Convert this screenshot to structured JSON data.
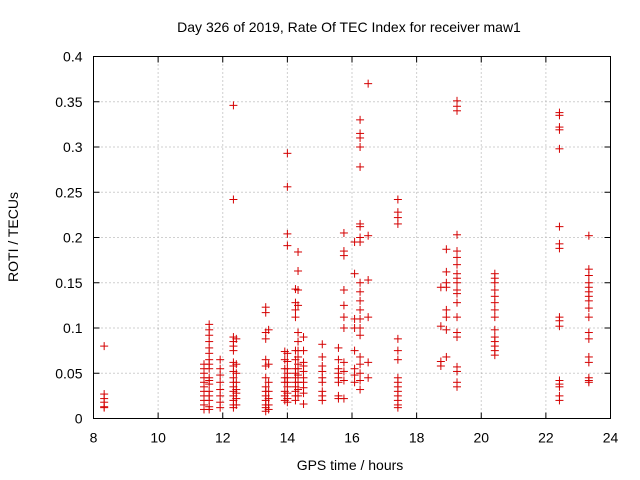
{
  "chart_data": {
    "type": "scatter",
    "title": "Day 326 of 2019, Rate Of TEC Index for receiver maw1",
    "xlabel": "GPS time / hours",
    "ylabel": "ROTI / TECUs",
    "xlim": [
      8,
      24
    ],
    "ylim": [
      0,
      0.4
    ],
    "x_ticks": [
      8,
      10,
      12,
      14,
      16,
      18,
      20,
      22,
      24
    ],
    "x_tick_labels": [
      "8",
      "10",
      "12",
      "14",
      "16",
      "18",
      "20",
      "22",
      "24"
    ],
    "y_ticks": [
      0,
      0.05,
      0.1,
      0.15,
      0.2,
      0.25,
      0.3,
      0.35,
      0.4
    ],
    "y_tick_labels": [
      "0",
      "0.05",
      "0.1",
      "0.15",
      "0.2",
      "0.25",
      "0.3",
      "0.35",
      "0.4"
    ],
    "grid": true,
    "marker": "plus",
    "color": "#d40000",
    "series": [
      {
        "name": "ROTI",
        "points": [
          [
            8.33,
            0.08
          ],
          [
            8.33,
            0.027
          ],
          [
            8.33,
            0.022
          ],
          [
            8.33,
            0.018
          ],
          [
            8.33,
            0.013
          ],
          [
            8.33,
            0.012
          ],
          [
            11.42,
            0.06
          ],
          [
            11.42,
            0.055
          ],
          [
            11.42,
            0.05
          ],
          [
            11.42,
            0.045
          ],
          [
            11.42,
            0.04
          ],
          [
            11.42,
            0.035
          ],
          [
            11.42,
            0.03
          ],
          [
            11.42,
            0.025
          ],
          [
            11.42,
            0.02
          ],
          [
            11.42,
            0.015
          ],
          [
            11.42,
            0.01
          ],
          [
            11.58,
            0.104
          ],
          [
            11.58,
            0.098
          ],
          [
            11.58,
            0.092
          ],
          [
            11.58,
            0.085
          ],
          [
            11.58,
            0.078
          ],
          [
            11.58,
            0.072
          ],
          [
            11.58,
            0.065
          ],
          [
            11.58,
            0.06
          ],
          [
            11.58,
            0.055
          ],
          [
            11.58,
            0.045
          ],
          [
            11.58,
            0.042
          ],
          [
            11.58,
            0.038
          ],
          [
            11.58,
            0.03
          ],
          [
            11.58,
            0.025
          ],
          [
            11.58,
            0.02
          ],
          [
            11.58,
            0.013
          ],
          [
            11.58,
            0.01
          ],
          [
            11.92,
            0.065
          ],
          [
            11.92,
            0.055
          ],
          [
            11.92,
            0.048
          ],
          [
            11.92,
            0.04
          ],
          [
            11.92,
            0.032
          ],
          [
            11.92,
            0.025
          ],
          [
            11.92,
            0.018
          ],
          [
            11.92,
            0.012
          ],
          [
            12.33,
            0.346
          ],
          [
            12.33,
            0.242
          ],
          [
            12.33,
            0.09
          ],
          [
            12.33,
            0.085
          ],
          [
            12.33,
            0.08
          ],
          [
            12.33,
            0.075
          ],
          [
            12.33,
            0.062
          ],
          [
            12.33,
            0.058
          ],
          [
            12.33,
            0.052
          ],
          [
            12.33,
            0.045
          ],
          [
            12.33,
            0.04
          ],
          [
            12.33,
            0.035
          ],
          [
            12.33,
            0.03
          ],
          [
            12.33,
            0.025
          ],
          [
            12.33,
            0.02
          ],
          [
            12.33,
            0.015
          ],
          [
            12.33,
            0.012
          ],
          [
            12.42,
            0.088
          ],
          [
            12.42,
            0.06
          ],
          [
            12.42,
            0.05
          ],
          [
            12.42,
            0.04
          ],
          [
            12.42,
            0.032
          ],
          [
            12.42,
            0.028
          ],
          [
            12.42,
            0.022
          ],
          [
            12.42,
            0.015
          ],
          [
            13.33,
            0.123
          ],
          [
            13.33,
            0.117
          ],
          [
            13.33,
            0.095
          ],
          [
            13.33,
            0.088
          ],
          [
            13.33,
            0.065
          ],
          [
            13.33,
            0.058
          ],
          [
            13.33,
            0.045
          ],
          [
            13.33,
            0.035
          ],
          [
            13.33,
            0.03
          ],
          [
            13.33,
            0.025
          ],
          [
            13.33,
            0.02
          ],
          [
            13.33,
            0.015
          ],
          [
            13.33,
            0.012
          ],
          [
            13.33,
            0.008
          ],
          [
            13.42,
            0.098
          ],
          [
            13.42,
            0.06
          ],
          [
            13.42,
            0.04
          ],
          [
            13.42,
            0.03
          ],
          [
            13.42,
            0.022
          ],
          [
            13.42,
            0.015
          ],
          [
            13.42,
            0.01
          ],
          [
            13.92,
            0.074
          ],
          [
            13.92,
            0.065
          ],
          [
            13.92,
            0.055
          ],
          [
            13.92,
            0.045
          ],
          [
            13.92,
            0.04
          ],
          [
            13.92,
            0.03
          ],
          [
            13.92,
            0.025
          ],
          [
            13.92,
            0.02
          ],
          [
            14.0,
            0.293
          ],
          [
            14.0,
            0.256
          ],
          [
            14.0,
            0.204
          ],
          [
            14.0,
            0.191
          ],
          [
            14.0,
            0.072
          ],
          [
            14.0,
            0.063
          ],
          [
            14.0,
            0.055
          ],
          [
            14.0,
            0.05
          ],
          [
            14.0,
            0.045
          ],
          [
            14.0,
            0.04
          ],
          [
            14.0,
            0.035
          ],
          [
            14.0,
            0.028
          ],
          [
            14.0,
            0.022
          ],
          [
            14.0,
            0.018
          ],
          [
            14.25,
            0.143
          ],
          [
            14.25,
            0.128
          ],
          [
            14.25,
            0.12
          ],
          [
            14.25,
            0.112
          ],
          [
            14.25,
            0.075
          ],
          [
            14.25,
            0.065
          ],
          [
            14.25,
            0.055
          ],
          [
            14.25,
            0.05
          ],
          [
            14.25,
            0.045
          ],
          [
            14.25,
            0.04
          ],
          [
            14.25,
            0.035
          ],
          [
            14.25,
            0.03
          ],
          [
            14.25,
            0.025
          ],
          [
            14.25,
            0.02
          ],
          [
            14.33,
            0.184
          ],
          [
            14.33,
            0.163
          ],
          [
            14.33,
            0.142
          ],
          [
            14.33,
            0.125
          ],
          [
            14.33,
            0.095
          ],
          [
            14.33,
            0.085
          ],
          [
            14.33,
            0.075
          ],
          [
            14.33,
            0.068
          ],
          [
            14.33,
            0.06
          ],
          [
            14.33,
            0.055
          ],
          [
            14.33,
            0.048
          ],
          [
            14.33,
            0.04
          ],
          [
            14.33,
            0.032
          ],
          [
            14.33,
            0.025
          ],
          [
            14.5,
            0.09
          ],
          [
            14.5,
            0.075
          ],
          [
            14.5,
            0.062
          ],
          [
            14.5,
            0.058
          ],
          [
            14.5,
            0.052
          ],
          [
            14.5,
            0.045
          ],
          [
            14.5,
            0.04
          ],
          [
            14.5,
            0.034
          ],
          [
            14.5,
            0.028
          ],
          [
            14.5,
            0.016
          ],
          [
            15.08,
            0.082
          ],
          [
            15.08,
            0.068
          ],
          [
            15.08,
            0.058
          ],
          [
            15.08,
            0.052
          ],
          [
            15.08,
            0.045
          ],
          [
            15.08,
            0.04
          ],
          [
            15.08,
            0.03
          ],
          [
            15.08,
            0.025
          ],
          [
            15.08,
            0.02
          ],
          [
            15.58,
            0.078
          ],
          [
            15.58,
            0.065
          ],
          [
            15.58,
            0.055
          ],
          [
            15.58,
            0.05
          ],
          [
            15.58,
            0.045
          ],
          [
            15.58,
            0.04
          ],
          [
            15.58,
            0.025
          ],
          [
            15.58,
            0.022
          ],
          [
            15.75,
            0.205
          ],
          [
            15.75,
            0.185
          ],
          [
            15.75,
            0.18
          ],
          [
            15.75,
            0.142
          ],
          [
            15.75,
            0.125
          ],
          [
            15.75,
            0.112
          ],
          [
            15.75,
            0.1
          ],
          [
            15.75,
            0.062
          ],
          [
            15.75,
            0.052
          ],
          [
            15.75,
            0.042
          ],
          [
            15.75,
            0.022
          ],
          [
            16.08,
            0.195
          ],
          [
            16.08,
            0.16
          ],
          [
            16.08,
            0.11
          ],
          [
            16.08,
            0.1
          ],
          [
            16.08,
            0.075
          ],
          [
            16.08,
            0.055
          ],
          [
            16.08,
            0.048
          ],
          [
            16.08,
            0.04
          ],
          [
            16.25,
            0.33
          ],
          [
            16.25,
            0.315
          ],
          [
            16.25,
            0.31
          ],
          [
            16.25,
            0.3
          ],
          [
            16.25,
            0.278
          ],
          [
            16.25,
            0.215
          ],
          [
            16.25,
            0.212
          ],
          [
            16.25,
            0.2
          ],
          [
            16.25,
            0.195
          ],
          [
            16.25,
            0.15
          ],
          [
            16.25,
            0.14
          ],
          [
            16.25,
            0.13
          ],
          [
            16.25,
            0.12
          ],
          [
            16.25,
            0.11
          ],
          [
            16.25,
            0.1
          ],
          [
            16.25,
            0.092
          ],
          [
            16.25,
            0.068
          ],
          [
            16.25,
            0.06
          ],
          [
            16.25,
            0.05
          ],
          [
            16.25,
            0.042
          ],
          [
            16.25,
            0.032
          ],
          [
            16.5,
            0.37
          ],
          [
            16.5,
            0.202
          ],
          [
            16.5,
            0.153
          ],
          [
            16.5,
            0.112
          ],
          [
            16.5,
            0.062
          ],
          [
            16.5,
            0.045
          ],
          [
            17.42,
            0.242
          ],
          [
            17.42,
            0.228
          ],
          [
            17.42,
            0.222
          ],
          [
            17.42,
            0.215
          ],
          [
            17.42,
            0.088
          ],
          [
            17.42,
            0.075
          ],
          [
            17.42,
            0.065
          ],
          [
            17.42,
            0.045
          ],
          [
            17.42,
            0.04
          ],
          [
            17.42,
            0.035
          ],
          [
            17.42,
            0.03
          ],
          [
            17.42,
            0.025
          ],
          [
            17.42,
            0.02
          ],
          [
            17.42,
            0.015
          ],
          [
            17.42,
            0.012
          ],
          [
            18.75,
            0.145
          ],
          [
            18.75,
            0.102
          ],
          [
            18.75,
            0.063
          ],
          [
            18.75,
            0.058
          ],
          [
            18.92,
            0.187
          ],
          [
            18.92,
            0.162
          ],
          [
            18.92,
            0.15
          ],
          [
            18.92,
            0.145
          ],
          [
            18.92,
            0.12
          ],
          [
            18.92,
            0.112
          ],
          [
            18.92,
            0.098
          ],
          [
            18.92,
            0.068
          ],
          [
            19.25,
            0.351
          ],
          [
            19.25,
            0.345
          ],
          [
            19.25,
            0.34
          ],
          [
            19.25,
            0.203
          ],
          [
            19.25,
            0.185
          ],
          [
            19.25,
            0.178
          ],
          [
            19.25,
            0.17
          ],
          [
            19.25,
            0.16
          ],
          [
            19.25,
            0.155
          ],
          [
            19.25,
            0.15
          ],
          [
            19.25,
            0.142
          ],
          [
            19.25,
            0.138
          ],
          [
            19.25,
            0.128
          ],
          [
            19.25,
            0.112
          ],
          [
            19.25,
            0.095
          ],
          [
            19.25,
            0.09
          ],
          [
            19.25,
            0.057
          ],
          [
            19.25,
            0.052
          ],
          [
            19.25,
            0.04
          ],
          [
            19.25,
            0.035
          ],
          [
            20.42,
            0.16
          ],
          [
            20.42,
            0.155
          ],
          [
            20.42,
            0.15
          ],
          [
            20.42,
            0.142
          ],
          [
            20.42,
            0.135
          ],
          [
            20.42,
            0.128
          ],
          [
            20.42,
            0.12
          ],
          [
            20.42,
            0.112
          ],
          [
            20.42,
            0.098
          ],
          [
            20.42,
            0.09
          ],
          [
            20.42,
            0.085
          ],
          [
            20.42,
            0.08
          ],
          [
            20.42,
            0.075
          ],
          [
            20.42,
            0.07
          ],
          [
            22.42,
            0.338
          ],
          [
            22.42,
            0.335
          ],
          [
            22.42,
            0.322
          ],
          [
            22.42,
            0.319
          ],
          [
            22.42,
            0.298
          ],
          [
            22.42,
            0.212
          ],
          [
            22.42,
            0.193
          ],
          [
            22.42,
            0.188
          ],
          [
            22.42,
            0.112
          ],
          [
            22.42,
            0.108
          ],
          [
            22.42,
            0.102
          ],
          [
            22.42,
            0.042
          ],
          [
            22.42,
            0.038
          ],
          [
            22.42,
            0.035
          ],
          [
            22.42,
            0.025
          ],
          [
            22.42,
            0.02
          ],
          [
            23.33,
            0.202
          ],
          [
            23.33,
            0.165
          ],
          [
            23.33,
            0.158
          ],
          [
            23.33,
            0.15
          ],
          [
            23.33,
            0.145
          ],
          [
            23.33,
            0.14
          ],
          [
            23.33,
            0.135
          ],
          [
            23.33,
            0.13
          ],
          [
            23.33,
            0.122
          ],
          [
            23.33,
            0.112
          ],
          [
            23.33,
            0.095
          ],
          [
            23.33,
            0.088
          ],
          [
            23.33,
            0.068
          ],
          [
            23.33,
            0.062
          ],
          [
            23.33,
            0.045
          ],
          [
            23.33,
            0.042
          ],
          [
            23.33,
            0.04
          ]
        ]
      }
    ]
  }
}
